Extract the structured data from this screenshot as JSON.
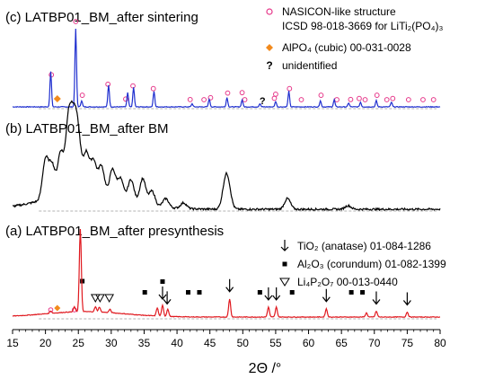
{
  "chart_data": {
    "type": "line",
    "xlabel": "2Θ /°",
    "xlim": [
      15,
      80
    ],
    "x_ticks": [
      "15",
      "20",
      "25",
      "30",
      "35",
      "40",
      "45",
      "50",
      "55",
      "60",
      "65",
      "70",
      "75",
      "80"
    ],
    "panels": [
      {
        "id": "c",
        "title": "(c) LATBP01_BM_after sintering",
        "color": "#1f2fcf",
        "peaks_x": [
          20.8,
          24.6,
          25.5,
          29.6,
          32.5,
          33.4,
          36.5,
          42.3,
          44.9,
          47.6,
          49.9,
          52.6,
          55.0,
          57.0,
          61.8,
          63.9,
          66.1,
          67.9,
          70.3,
          72.6
        ],
        "peaks_h": [
          0.45,
          1.0,
          0.08,
          0.28,
          0.18,
          0.25,
          0.2,
          0.04,
          0.1,
          0.12,
          0.09,
          0.04,
          0.07,
          0.2,
          0.08,
          0.09,
          0.05,
          0.06,
          0.08,
          0.06
        ],
        "nasicon_markers_x": [
          20.9,
          24.6,
          25.6,
          29.5,
          32.2,
          33.3,
          36.4,
          42.0,
          44.1,
          45.1,
          47.7,
          49.9,
          50.3,
          54.8,
          55.0,
          57.1,
          58.9,
          61.9,
          64.3,
          66.4,
          67.7,
          68.6,
          70.4,
          71.9,
          72.8,
          75.2,
          77.4,
          79.0
        ],
        "alpo4_markers_x": [
          21.8
        ],
        "unidentified_markers_x": [
          53.0
        ]
      },
      {
        "id": "b",
        "title": "(b) LATBP01_BM_after BM",
        "color": "#000000",
        "peaks_x": [
          20.0,
          21.0,
          22.3,
          23.5,
          24.3,
          25.0,
          26.2,
          27.3,
          28.5,
          30.2,
          31.4,
          33.0,
          34.8,
          36.2,
          38.3,
          41.0,
          47.3,
          47.8,
          56.8,
          66.0
        ],
        "peaks_h": [
          0.55,
          0.45,
          0.6,
          1.0,
          0.85,
          0.7,
          0.55,
          0.45,
          0.4,
          0.38,
          0.28,
          0.3,
          0.35,
          0.2,
          0.12,
          0.08,
          0.3,
          0.28,
          0.15,
          0.05
        ]
      },
      {
        "id": "a",
        "title": "(a) LATBP01_BM_after presynthesis",
        "color": "#e0191f",
        "peaks_x": [
          20.8,
          24.4,
          25.3,
          27.6,
          28.2,
          29.8,
          37.0,
          37.8,
          38.6,
          48.0,
          53.9,
          55.1,
          62.7,
          68.8,
          70.3,
          75.0
        ],
        "peaks_h": [
          0.03,
          0.06,
          1.0,
          0.06,
          0.06,
          0.04,
          0.1,
          0.13,
          0.09,
          0.22,
          0.12,
          0.12,
          0.1,
          0.05,
          0.07,
          0.06
        ],
        "anatase_markers_x": [
          37.8,
          38.5,
          48.0,
          53.9,
          55.1,
          62.7,
          70.3,
          75.0
        ],
        "corundum_markers_x": [
          25.6,
          35.1,
          37.8,
          41.7,
          43.4,
          52.6,
          57.5,
          66.5,
          68.2
        ],
        "li4p2o7_markers_x": [
          27.6,
          28.3,
          29.7
        ],
        "nasicon_markers_x": [
          20.8,
          24.4
        ],
        "alpo4_markers_x": [
          21.8
        ]
      }
    ],
    "legends": {
      "c": [
        {
          "marker": "open-circle",
          "color": "#e6388a",
          "label_lines": [
            "NASICON-like structure",
            "ICSD 98-018-3669 for LiTi₂(PO₄)₃"
          ]
        },
        {
          "marker": "diamond",
          "color": "#f28a1c",
          "label_lines": [
            "AlPO₄ (cubic) 00-031-0028"
          ]
        },
        {
          "marker": "question",
          "color": "#000000",
          "label_lines": [
            "unidentified"
          ]
        }
      ],
      "a": [
        {
          "marker": "down-arrow",
          "color": "#000000",
          "label_lines": [
            "TiO₂ (anatase) 01-084-1286"
          ]
        },
        {
          "marker": "square",
          "color": "#000000",
          "label_lines": [
            "Al₂O₃ (corundum)  01-082-1399"
          ]
        },
        {
          "marker": "triangle",
          "color": "#000000",
          "label_lines": [
            "Li₄P₂O₇ 00-013-0440"
          ]
        }
      ]
    }
  }
}
